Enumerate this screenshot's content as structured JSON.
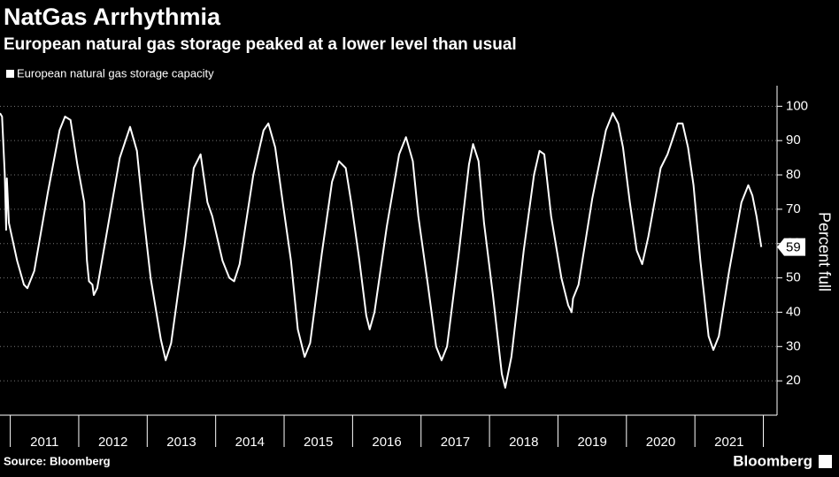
{
  "chart_data": {
    "type": "line",
    "title": "NatGas Arrhythmia",
    "subtitle": "European natural gas storage peaked at a lower level than usual",
    "y_label": "Percent full",
    "source": "Source: Bloomberg",
    "brand": "Bloomberg",
    "xlim": [
      2010.85,
      2022.2
    ],
    "xticks": [
      {
        "value": 2011.5,
        "label": "2011"
      },
      {
        "value": 2012.5,
        "label": "2012"
      },
      {
        "value": 2013.5,
        "label": "2013"
      },
      {
        "value": 2014.5,
        "label": "2014"
      },
      {
        "value": 2015.5,
        "label": "2015"
      },
      {
        "value": 2016.5,
        "label": "2016"
      },
      {
        "value": 2017.5,
        "label": "2017"
      },
      {
        "value": 2018.5,
        "label": "2018"
      },
      {
        "value": 2019.5,
        "label": "2019"
      },
      {
        "value": 2020.5,
        "label": "2020"
      },
      {
        "value": 2021.5,
        "label": "2021"
      }
    ],
    "ylim": [
      10,
      106
    ],
    "yticks": [
      20,
      30,
      40,
      50,
      60,
      70,
      80,
      90,
      100
    ],
    "grid": true,
    "x": [
      2010.85,
      2010.88,
      2010.92,
      2010.94,
      2010.95,
      2010.98,
      2011.1,
      2011.2,
      2011.25,
      2011.35,
      2011.55,
      2011.72,
      2011.8,
      2011.88,
      2011.98,
      2012.08,
      2012.12,
      2012.15,
      2012.2,
      2012.22,
      2012.27,
      2012.4,
      2012.6,
      2012.75,
      2012.85,
      2012.92,
      2013.05,
      2013.2,
      2013.27,
      2013.35,
      2013.55,
      2013.68,
      2013.78,
      2013.88,
      2013.95,
      2014.1,
      2014.2,
      2014.27,
      2014.35,
      2014.55,
      2014.7,
      2014.77,
      2014.87,
      2014.98,
      2015.1,
      2015.2,
      2015.3,
      2015.38,
      2015.55,
      2015.7,
      2015.8,
      2015.9,
      2015.98,
      2016.1,
      2016.2,
      2016.25,
      2016.32,
      2016.5,
      2016.68,
      2016.78,
      2016.88,
      2016.96,
      2017.1,
      2017.22,
      2017.3,
      2017.38,
      2017.55,
      2017.7,
      2017.76,
      2017.84,
      2017.92,
      2018.05,
      2018.18,
      2018.23,
      2018.32,
      2018.5,
      2018.65,
      2018.73,
      2018.8,
      2018.9,
      2019.05,
      2019.15,
      2019.2,
      2019.22,
      2019.3,
      2019.5,
      2019.7,
      2019.8,
      2019.88,
      2019.95,
      2020.05,
      2020.15,
      2020.23,
      2020.32,
      2020.5,
      2020.6,
      2020.75,
      2020.82,
      2020.9,
      2020.98,
      2021.08,
      2021.2,
      2021.27,
      2021.35,
      2021.5,
      2021.68,
      2021.78,
      2021.84,
      2021.9,
      2021.97
    ],
    "series": [
      {
        "name": "European natural gas storage capacity",
        "color": "#ffffff",
        "values": [
          98,
          97,
          80,
          64,
          79,
          66,
          55,
          48,
          47,
          52,
          75,
          93,
          97,
          96,
          83,
          72,
          55,
          49,
          48,
          45,
          47,
          62,
          85,
          94,
          87,
          73,
          50,
          32,
          26,
          31,
          60,
          82,
          86,
          72,
          68,
          55,
          50,
          49,
          54,
          80,
          93,
          95,
          88,
          72,
          55,
          35,
          27,
          31,
          57,
          78,
          84,
          82,
          72,
          55,
          39,
          35,
          40,
          65,
          86,
          91,
          84,
          68,
          48,
          30,
          26,
          30,
          57,
          83,
          89,
          84,
          66,
          45,
          22,
          18,
          27,
          58,
          80,
          87,
          86,
          68,
          50,
          42,
          40,
          44,
          48,
          73,
          93,
          98,
          95,
          88,
          72,
          58,
          54,
          62,
          82,
          86,
          95,
          95,
          88,
          77,
          55,
          33,
          29,
          33,
          52,
          72,
          77,
          74,
          68,
          59
        ]
      }
    ]
  }
}
